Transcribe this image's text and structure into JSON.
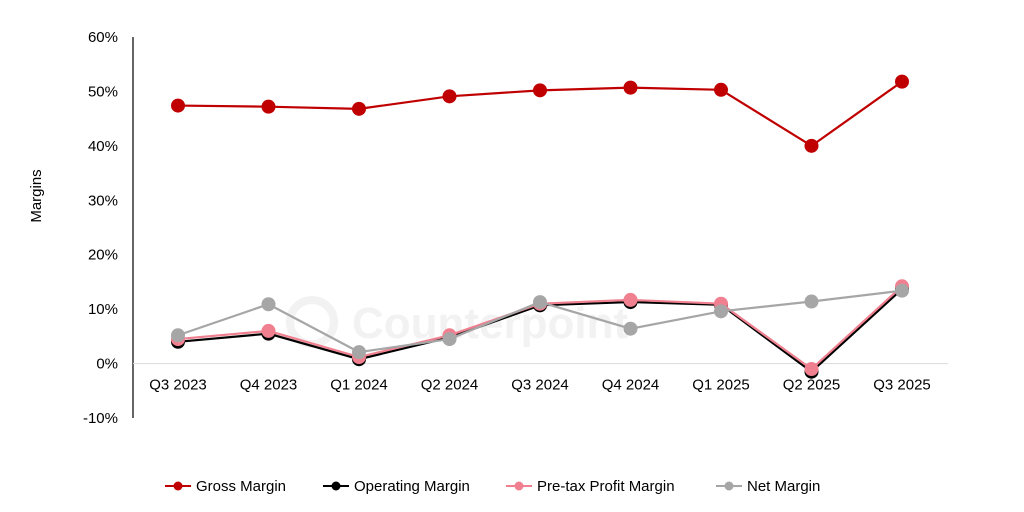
{
  "chart_data": {
    "type": "line",
    "title": "",
    "xlabel": "",
    "ylabel": "Margins",
    "ylim": [
      -10,
      60
    ],
    "ytick_step": 10,
    "y_tick_suffix": "%",
    "legend_position": "bottom",
    "watermark": "Counterpoint",
    "categories": [
      "Q3 2023",
      "Q4 2023",
      "Q1 2024",
      "Q2 2024",
      "Q3 2024",
      "Q4 2024",
      "Q1 2025",
      "Q2 2025",
      "Q3 2025"
    ],
    "series": [
      {
        "name": "Gross Margin",
        "color": "#c00000",
        "values": [
          47.4,
          47.2,
          46.8,
          49.1,
          50.2,
          50.7,
          50.3,
          40.0,
          51.8
        ]
      },
      {
        "name": "Operating Margin",
        "color": "#000000",
        "values": [
          4.0,
          5.5,
          0.8,
          4.8,
          10.7,
          11.3,
          10.8,
          -1.5,
          13.7
        ]
      },
      {
        "name": "Pre-tax Profit Margin",
        "color": "#f08090",
        "values": [
          4.5,
          6.0,
          1.2,
          5.2,
          11.0,
          11.7,
          11.0,
          -1.0,
          14.2
        ]
      },
      {
        "name": "Net Margin",
        "color": "#a6a6a6",
        "values": [
          5.2,
          10.9,
          2.1,
          4.5,
          11.3,
          6.4,
          9.6,
          11.4,
          13.4
        ]
      }
    ]
  }
}
